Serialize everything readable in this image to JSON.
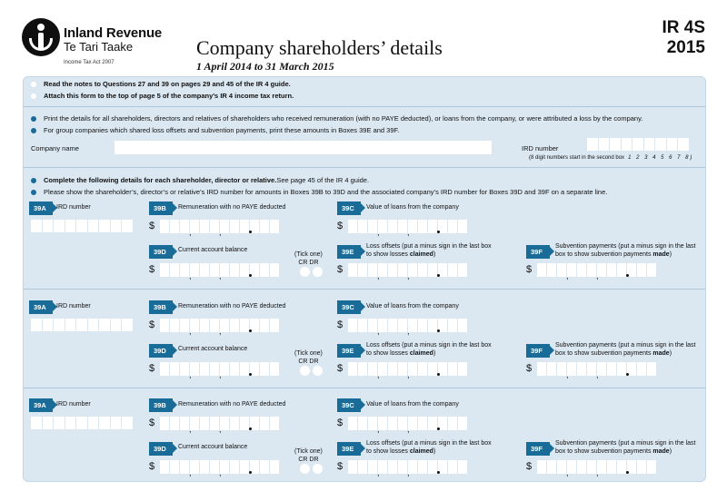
{
  "header": {
    "org_name": "Inland Revenue",
    "org_sub": "Te Tari Taake",
    "act": "Income Tax Act 2007",
    "title": "Company shareholders’ details",
    "period": "1 April 2014 to 31 March 2015",
    "form_code": "IR 4S",
    "year": "2015"
  },
  "instructions": {
    "top": [
      "Read the notes to Questions 27 and 39 on pages 29 and 45 of the IR 4 guide.",
      "Attach this form to the top of page 5 of the company’s IR 4 income tax return."
    ],
    "print_details": "Print the details for all shareholders, directors and relatives of shareholders who received remuneration (with no PAYE deducted), or loans from the company, or were attributed a loss by the company.",
    "group": "For group companies which shared loss offsets and subvention payments, print these amounts in Boxes 39E and 39F.",
    "complete_bold": "Complete the following details for each shareholder, director or relative.",
    "complete_rest": " See page 45 of the IR 4 guide.",
    "ird_note": "Please show the shareholder’s, director’s or relative’s IRD number for amounts in Boxes 39B to 39D and the associated company’s IRD number for Boxes 39D and 39F on a separate line."
  },
  "company": {
    "name_label": "Company name",
    "ird_label": "IRD number",
    "ird_hint": "(8 digit numbers start in the second box",
    "ird_hint_digits": "1 2 3 4 5 6 7 8)"
  },
  "fields": {
    "a": {
      "code": "39A",
      "label": "IRD number"
    },
    "b": {
      "code": "39B",
      "label": "Remuneration with no PAYE deducted"
    },
    "c": {
      "code": "39C",
      "label": "Value of loans from the company"
    },
    "d": {
      "code": "39D",
      "label": "Current account balance"
    },
    "e": {
      "code": "39E",
      "label_1": "Loss offsets (put a minus sign in the last box",
      "label_2a": "to show losses ",
      "label_2b": "claimed",
      "label_2c": ")"
    },
    "f": {
      "code": "39F",
      "label_1": "Subvention payments (put a minus sign in the last",
      "label_2a": "box to show subvention payments ",
      "label_2b": "made",
      "label_2c": ")"
    },
    "tick": {
      "line1": "(Tick one)",
      "line2": "CR  DR"
    },
    "currency": "$",
    "comma": ","
  }
}
